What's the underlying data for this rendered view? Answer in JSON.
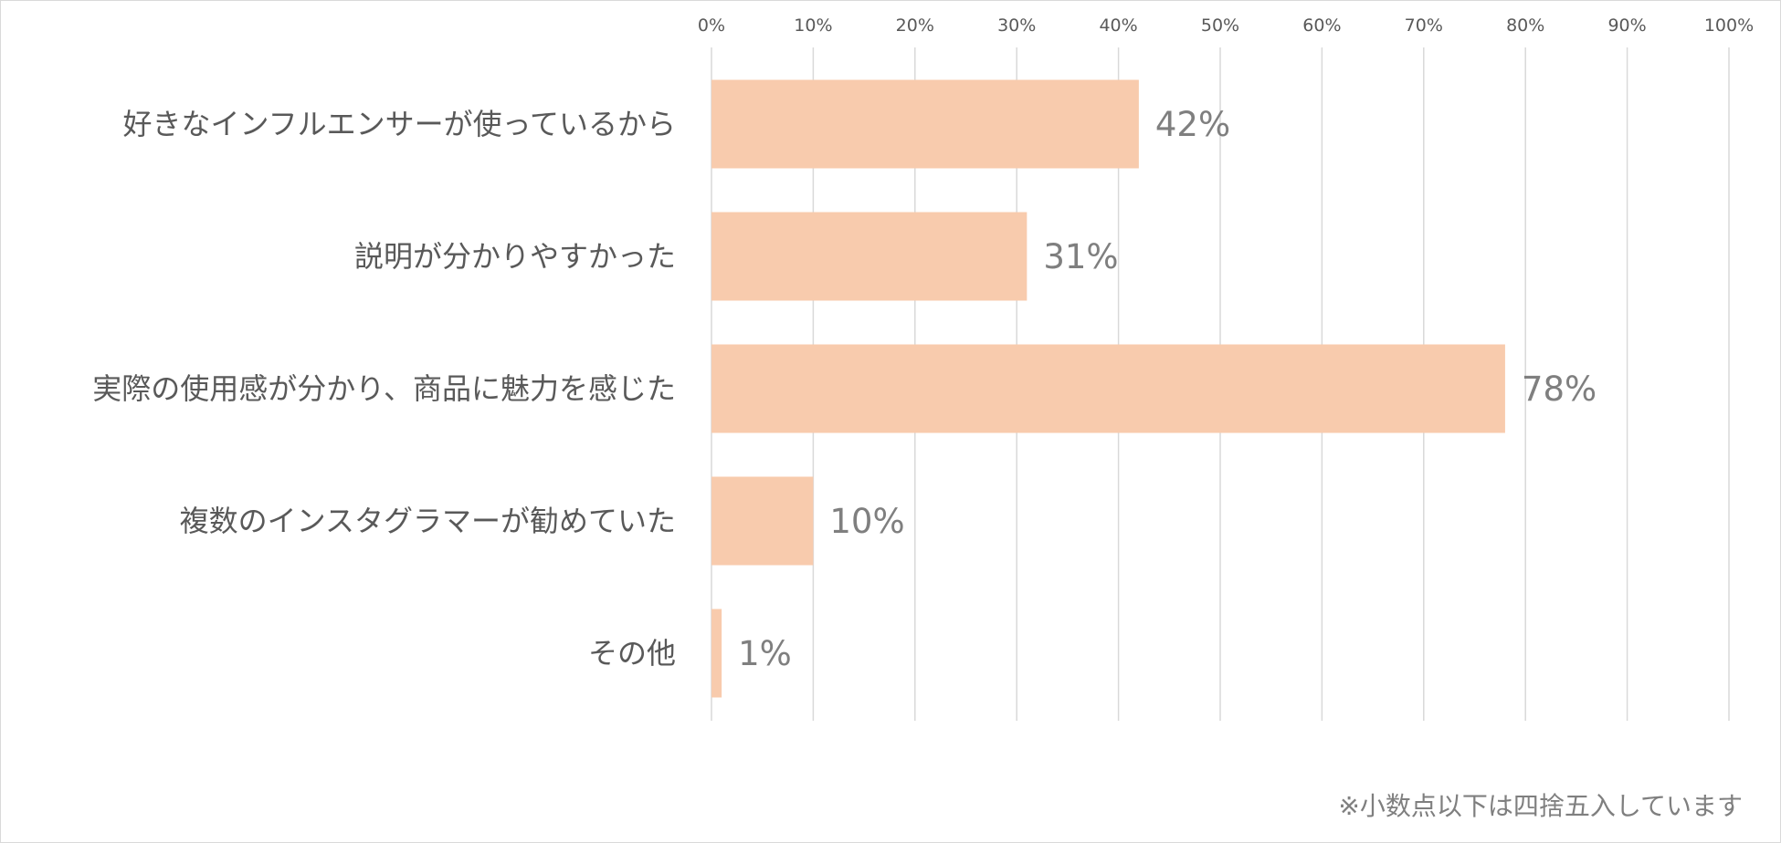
{
  "chart_data": {
    "type": "bar",
    "orientation": "horizontal",
    "categories": [
      "好きなインフルエンサーが使っているから",
      "説明が分かりやすかった",
      "実際の使用感が分かり、商品に魅力を感じた",
      "複数のインスタグラマーが勧めていた",
      "その他"
    ],
    "values": [
      42,
      31,
      78,
      10,
      1
    ],
    "data_labels": [
      "42%",
      "31%",
      "78%",
      "10%",
      "1%"
    ],
    "xlim": [
      0,
      100
    ],
    "x_ticks": [
      0,
      10,
      20,
      30,
      40,
      50,
      60,
      70,
      80,
      90,
      100
    ],
    "x_tick_labels": [
      "0%",
      "10%",
      "20%",
      "30%",
      "40%",
      "50%",
      "60%",
      "70%",
      "80%",
      "90%",
      "100%"
    ],
    "x_axis_position": "top",
    "grid": true,
    "bar_color": "#f8cbad",
    "grid_color": "#d9d9d9",
    "title": "",
    "xlabel": "",
    "ylabel": ""
  },
  "footnote": "※小数点以下は四捨五入しています"
}
